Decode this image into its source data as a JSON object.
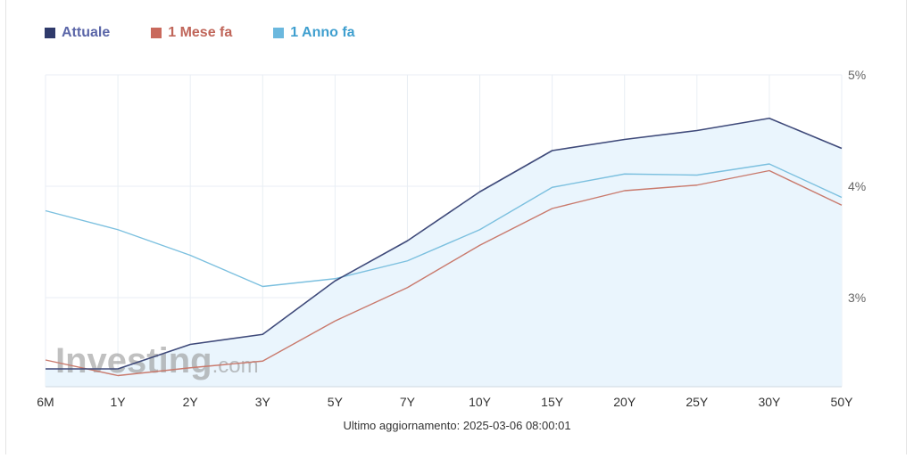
{
  "chart_data": {
    "type": "line",
    "categories": [
      "6M",
      "1Y",
      "2Y",
      "3Y",
      "5Y",
      "7Y",
      "10Y",
      "15Y",
      "20Y",
      "25Y",
      "30Y",
      "50Y"
    ],
    "series": [
      {
        "name": "Attuale",
        "color": "#3f4a7a",
        "legend_color": "#5b66a8",
        "swatch_color": "#2f3a6b",
        "values": [
          2.36,
          2.36,
          2.58,
          2.67,
          3.15,
          3.51,
          3.95,
          4.32,
          4.42,
          4.5,
          4.61,
          4.34
        ]
      },
      {
        "name": "1 Mese fa",
        "color": "#c97a6d",
        "legend_color": "#c0665a",
        "swatch_color": "#c9695c",
        "values": [
          2.44,
          2.3,
          2.37,
          2.43,
          2.79,
          3.09,
          3.47,
          3.8,
          3.96,
          4.01,
          4.14,
          3.83
        ]
      },
      {
        "name": "1 Anno fa",
        "color": "#7cc0df",
        "legend_color": "#3f9fcf",
        "swatch_color": "#6bb8de",
        "values": [
          3.78,
          3.61,
          3.38,
          3.1,
          3.17,
          3.33,
          3.61,
          3.99,
          4.11,
          4.1,
          4.2,
          3.9
        ]
      }
    ],
    "ylim": [
      2.2,
      5.0
    ],
    "yticks": [
      3,
      4,
      5
    ],
    "ytick_labels": [
      "3%",
      "4%",
      "5%"
    ],
    "y_axis_side": "right",
    "grid": true,
    "area_fill_series": "Attuale",
    "area_fill_color": "#eaf5fd",
    "legend_placement": "top-left"
  },
  "watermark": {
    "text": "Investing",
    "suffix": ".com"
  },
  "footer": {
    "updated": "Ultimo aggiornamento: 2025-03-06 08:00:01"
  }
}
